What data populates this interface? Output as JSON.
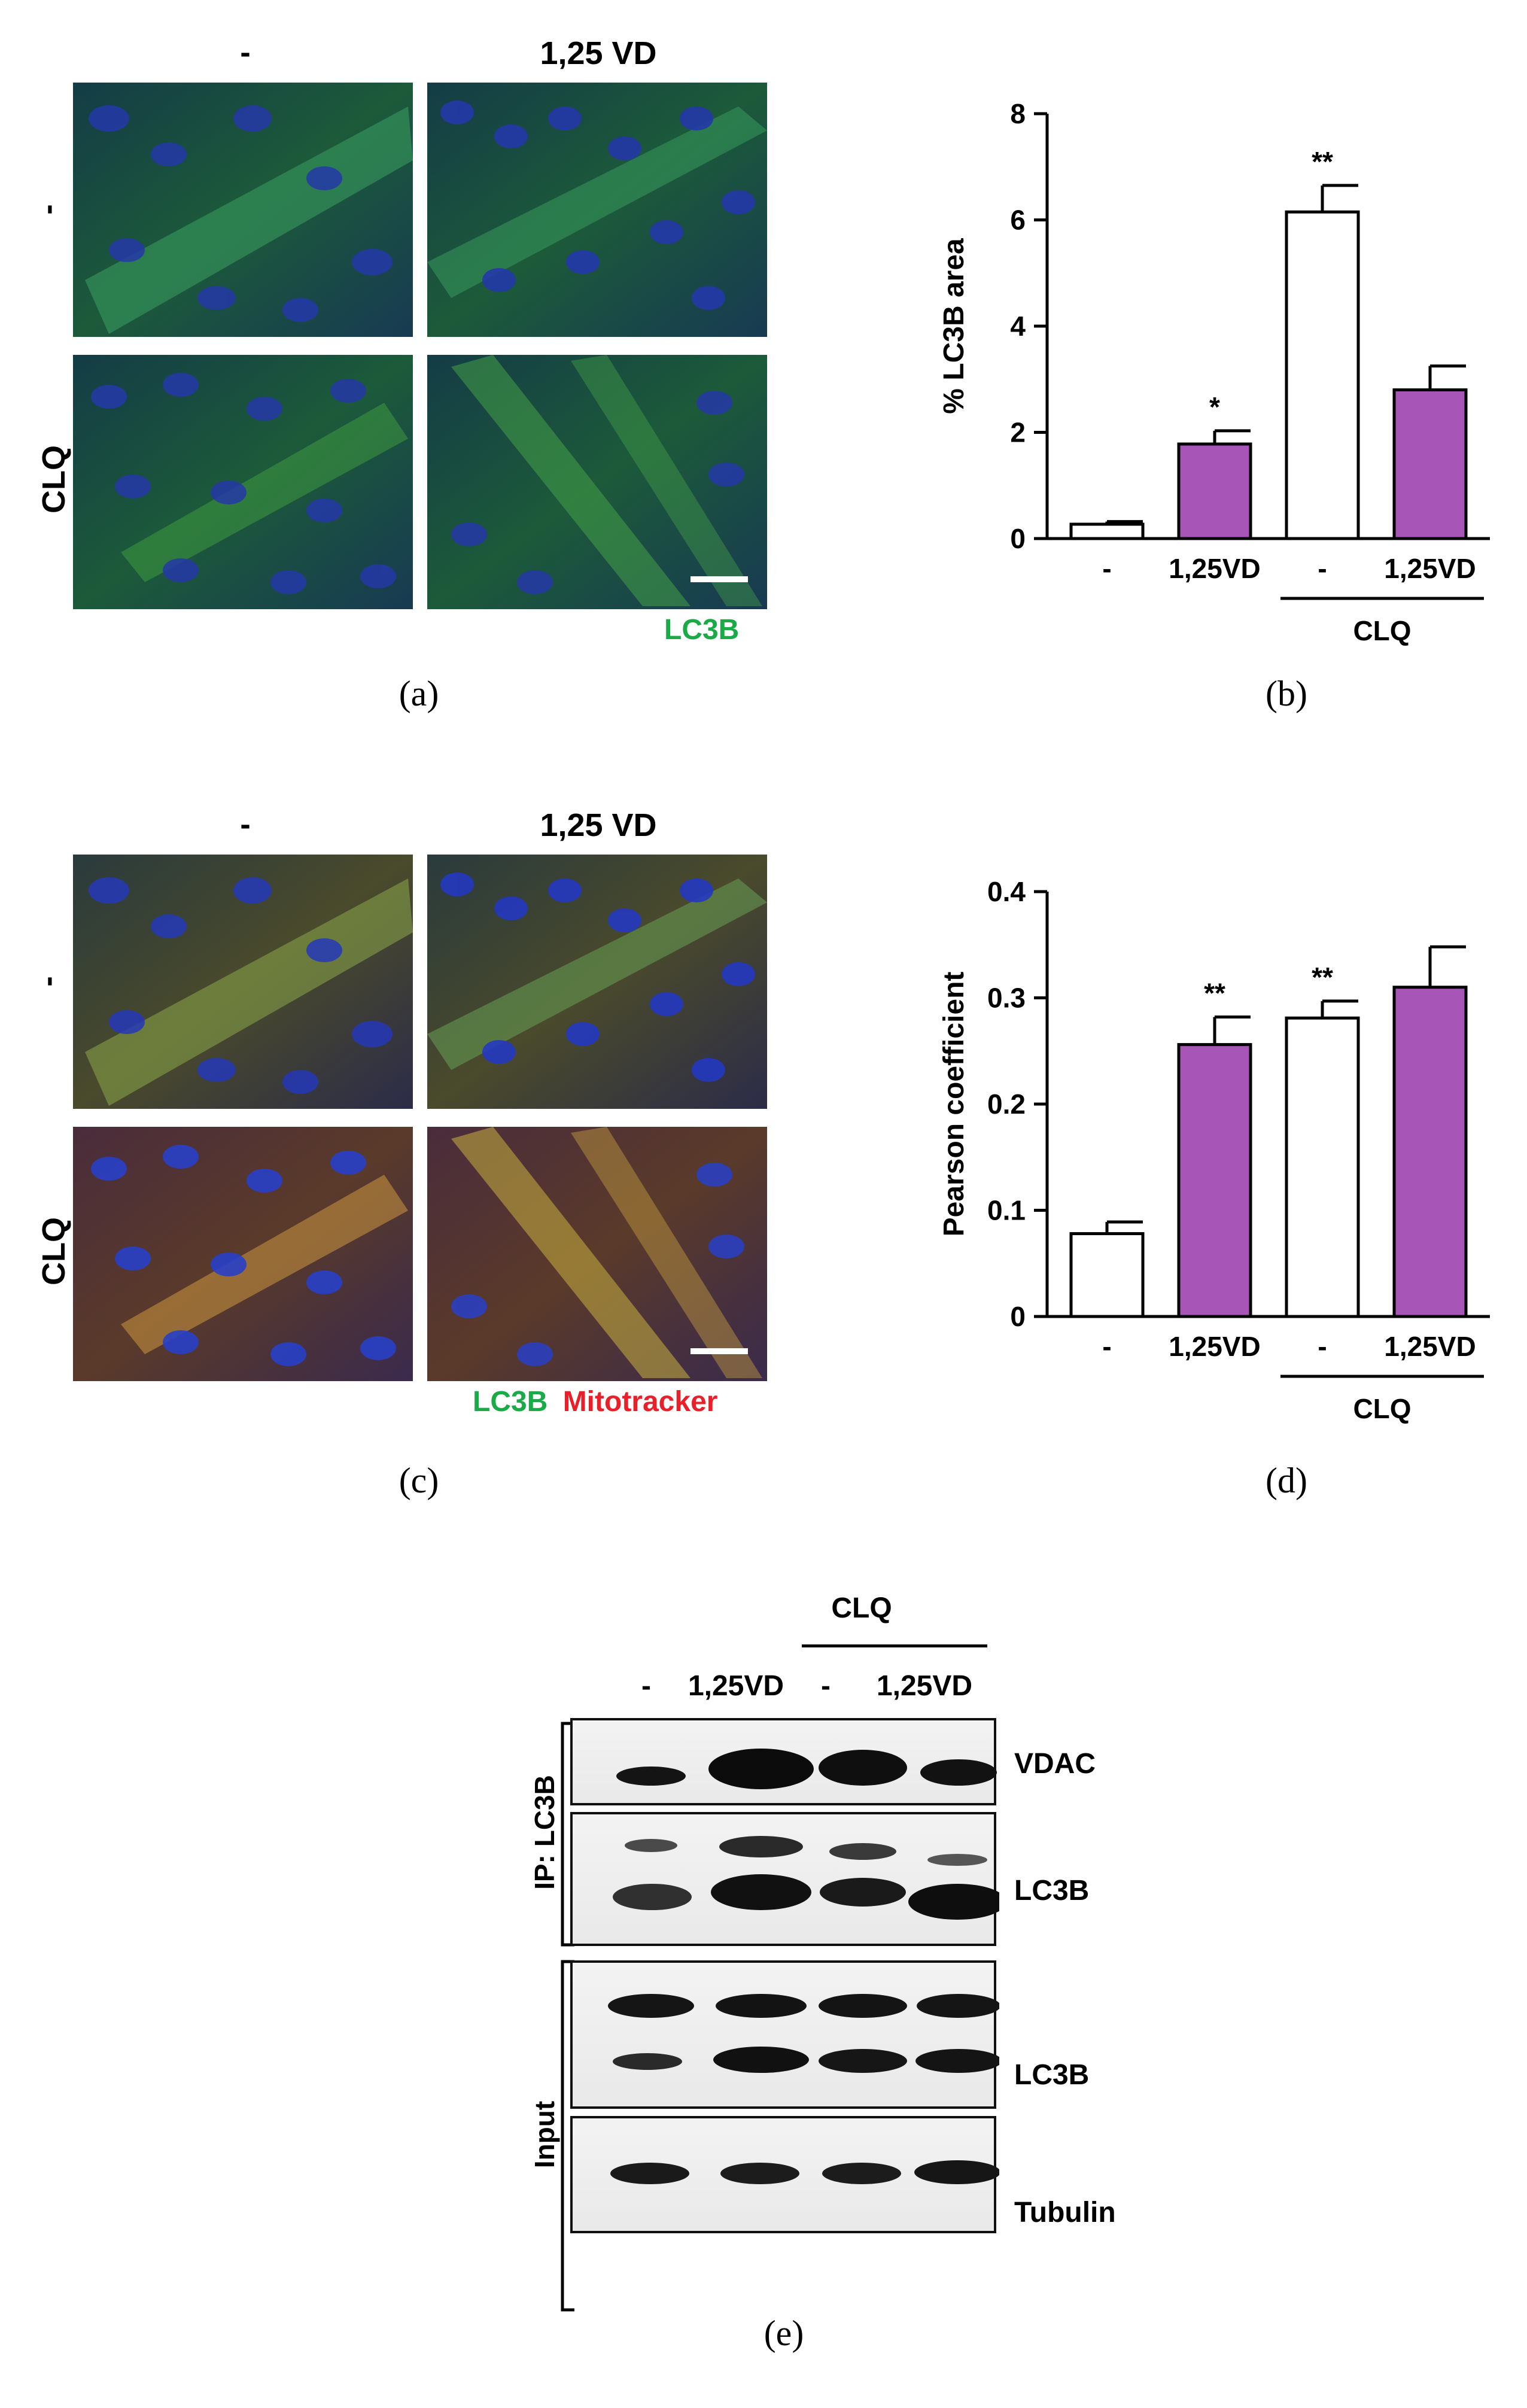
{
  "panel_a": {
    "col_labels": [
      "-",
      "1,25 VD"
    ],
    "row_labels": [
      "-",
      "CLQ"
    ],
    "stain": "LC3B",
    "stain_color": "#1aaa48",
    "caption": "(a)"
  },
  "panel_c": {
    "col_labels": [
      "-",
      "1,25 VD"
    ],
    "row_labels": [
      "-",
      "CLQ"
    ],
    "stain_green": "LC3B",
    "stain_red": "Mitotracker",
    "green_color": "#1aaa48",
    "red_color": "#e8202a",
    "caption": "(c)"
  },
  "panel_b": {
    "caption": "(b)"
  },
  "panel_d": {
    "caption": "(d)"
  },
  "panel_e": {
    "caption": "(e)",
    "group_label": "CLQ",
    "lane_labels": [
      "-",
      "1,25VD",
      "-",
      "1,25VD"
    ],
    "ip_label": "IP: LC3B",
    "input_label": "Input",
    "blot_labels": [
      "VDAC",
      "LC3B",
      "LC3B",
      "Tubulin"
    ]
  },
  "chart_data": [
    {
      "type": "bar",
      "panel": "b",
      "ylabel": "% LC3B area",
      "ylim": [
        0,
        8
      ],
      "yticks": [
        0,
        2,
        4,
        6,
        8
      ],
      "categories": [
        "-",
        "1,25VD",
        "-",
        "1,25VD"
      ],
      "group_label": "CLQ",
      "values": [
        0.27,
        1.78,
        6.15,
        2.8
      ],
      "errors": [
        0.05,
        0.25,
        0.5,
        0.45
      ],
      "significance": [
        "",
        "*",
        "**",
        ""
      ],
      "bar_colors": [
        "#ffffff",
        "#a855b8",
        "#ffffff",
        "#a855b8"
      ]
    },
    {
      "type": "bar",
      "panel": "d",
      "ylabel": "Pearson coefficient",
      "ylim": [
        0,
        0.4
      ],
      "yticks": [
        "0",
        "0.1",
        "0.2",
        "0.3",
        "0.4"
      ],
      "categories": [
        "-",
        "1,25VD",
        "-",
        "1,25VD"
      ],
      "group_label": "CLQ",
      "values": [
        0.078,
        0.256,
        0.281,
        0.31
      ],
      "errors": [
        0.011,
        0.026,
        0.016,
        0.038
      ],
      "significance": [
        "",
        "**",
        "**",
        ""
      ],
      "bar_colors": [
        "#ffffff",
        "#a855b8",
        "#ffffff",
        "#a855b8"
      ]
    }
  ]
}
